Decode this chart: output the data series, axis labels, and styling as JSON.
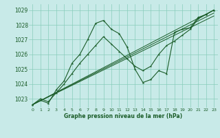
{
  "title": "Graphe pression niveau de la mer (hPa)",
  "background_color": "#c8eae8",
  "grid_color": "#88ccbb",
  "line_color": "#1a5c28",
  "xlim": [
    -0.5,
    23.5
  ],
  "ylim": [
    1022.4,
    1029.4
  ],
  "yticks": [
    1023,
    1024,
    1025,
    1026,
    1027,
    1028,
    1029
  ],
  "xticks": [
    0,
    1,
    2,
    3,
    4,
    5,
    6,
    7,
    8,
    9,
    10,
    11,
    12,
    13,
    14,
    15,
    16,
    17,
    18,
    19,
    20,
    21,
    22,
    23
  ],
  "series1_x": [
    0,
    1,
    2,
    3,
    4,
    5,
    6,
    7,
    8,
    9,
    10,
    11,
    12,
    13,
    14,
    15,
    16,
    17,
    18,
    19,
    20,
    21,
    22,
    23
  ],
  "series1_y": [
    1022.6,
    1022.9,
    1022.7,
    1023.6,
    1024.2,
    1025.4,
    1026.0,
    1027.0,
    1028.1,
    1028.3,
    1027.7,
    1027.4,
    1026.5,
    1025.0,
    1024.1,
    1024.3,
    1024.9,
    1024.7,
    1027.5,
    1027.7,
    1027.8,
    1028.5,
    1028.7,
    1029.0
  ],
  "series2_x": [
    0,
    1,
    2,
    3,
    4,
    5,
    6,
    7,
    8,
    9,
    10,
    11,
    12,
    13,
    14,
    15,
    16,
    17,
    18,
    19,
    20,
    21,
    22,
    23
  ],
  "series2_y": [
    1022.6,
    1023.0,
    1022.8,
    1023.4,
    1024.0,
    1024.7,
    1025.4,
    1026.0,
    1026.6,
    1027.2,
    1026.7,
    1026.2,
    1025.7,
    1025.2,
    1024.9,
    1025.2,
    1026.0,
    1026.6,
    1026.9,
    1027.3,
    1027.7,
    1028.4,
    1028.7,
    1029.0
  ],
  "trend1_x": [
    0,
    23
  ],
  "trend1_y": [
    1022.6,
    1029.0
  ],
  "trend2_x": [
    0,
    23
  ],
  "trend2_y": [
    1022.6,
    1028.8
  ],
  "trend3_x": [
    0,
    23
  ],
  "trend3_y": [
    1022.6,
    1028.6
  ]
}
